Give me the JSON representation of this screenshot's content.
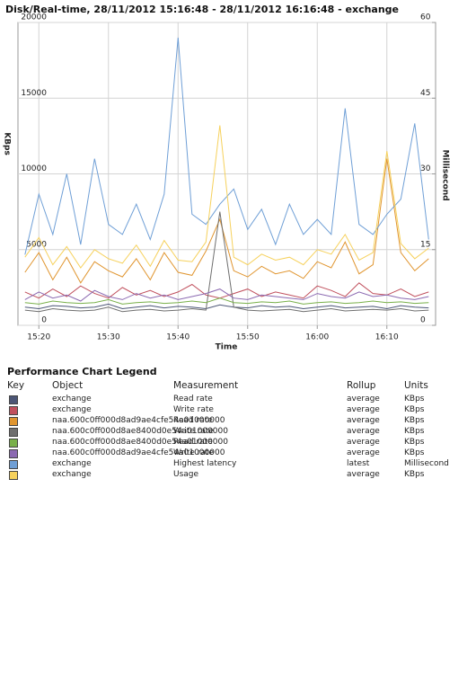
{
  "chart_data": {
    "type": "line",
    "title": "Disk/Real-time, 28/11/2012 15:16:48 - 28/11/2012 16:16:48 - exchange",
    "x_label": "Time",
    "y_label": "KBps",
    "y2_label": "Millisecond",
    "x": [
      "15:18",
      "15:20",
      "15:22",
      "15:24",
      "15:26",
      "15:28",
      "15:30",
      "15:32",
      "15:34",
      "15:36",
      "15:38",
      "15:40",
      "15:42",
      "15:44",
      "15:46",
      "15:48",
      "15:50",
      "15:52",
      "15:54",
      "15:56",
      "15:58",
      "16:00",
      "16:02",
      "16:04",
      "16:06",
      "16:08",
      "16:10",
      "16:12",
      "16:14",
      "16:16"
    ],
    "xlim": [
      "15:17",
      "16:17"
    ],
    "xticks": [
      "15:20",
      "15:30",
      "15:40",
      "15:50",
      "16:00",
      "16:10"
    ],
    "ylim": [
      0,
      20000
    ],
    "yticks": [
      0,
      5000,
      10000,
      15000,
      20000
    ],
    "y2lim": [
      0,
      60
    ],
    "y2ticks": [
      0,
      15,
      30,
      45,
      60
    ],
    "grid": true,
    "series": [
      {
        "color": "#4c5676",
        "values": [
          1200,
          1100,
          1300,
          1250,
          1150,
          1200,
          1400,
          1100,
          1200,
          1300,
          1150,
          1250,
          1200,
          1100,
          1350,
          1200,
          1150,
          1300,
          1200,
          1250,
          1100,
          1200,
          1300,
          1150,
          1200,
          1250,
          1100,
          1300,
          1200,
          1150
        ]
      },
      {
        "color": "#c0505d",
        "values": [
          2200,
          1800,
          2400,
          1900,
          2600,
          2100,
          1800,
          2500,
          2000,
          2300,
          1900,
          2200,
          2700,
          2000,
          1800,
          2100,
          2400,
          1900,
          2200,
          2000,
          1800,
          2600,
          2300,
          1900,
          2800,
          2100,
          2000,
          2400,
          1900,
          2200
        ]
      },
      {
        "color": "#e0952f",
        "values": [
          3500,
          4800,
          3000,
          4500,
          2800,
          4200,
          3600,
          3200,
          4400,
          3000,
          4800,
          3500,
          3300,
          4900,
          7000,
          3600,
          3200,
          3900,
          3400,
          3600,
          3100,
          4200,
          3800,
          5500,
          3400,
          4000,
          11000,
          4800,
          3600,
          4400
        ]
      },
      {
        "color": "#6f6f6f",
        "values": [
          1000,
          900,
          1100,
          1000,
          950,
          1000,
          1200,
          900,
          1000,
          1050,
          950,
          1000,
          1100,
          1000,
          7500,
          1200,
          1000,
          950,
          1000,
          1050,
          900,
          1000,
          1100,
          950,
          1000,
          1050,
          1000,
          1100,
          950,
          1000
        ]
      },
      {
        "color": "#79b04a",
        "values": [
          1500,
          1400,
          1600,
          1500,
          1450,
          1500,
          1700,
          1400,
          1500,
          1550,
          1450,
          1500,
          1600,
          1500,
          1800,
          1500,
          1450,
          1550,
          1500,
          1600,
          1400,
          1500,
          1550,
          1450,
          1500,
          1600,
          1500,
          1550,
          1450,
          1500
        ]
      },
      {
        "color": "#8b69b1",
        "values": [
          1700,
          2200,
          1800,
          2000,
          1600,
          2300,
          1900,
          1700,
          2100,
          1800,
          2000,
          1700,
          1900,
          2100,
          2400,
          1800,
          1700,
          2000,
          1900,
          1800,
          1700,
          2100,
          1900,
          1800,
          2200,
          1900,
          2000,
          1800,
          1700,
          1900
        ]
      },
      {
        "color": "#6f9fd6",
        "axis": "y2",
        "values": [
          14,
          26,
          18,
          30,
          16,
          33,
          20,
          18,
          24,
          17,
          26,
          57,
          22,
          20,
          24,
          27,
          19,
          23,
          16,
          24,
          18,
          21,
          18,
          43,
          20,
          18,
          22,
          25,
          40,
          17
        ]
      },
      {
        "color": "#f6d15c",
        "values": [
          4500,
          5800,
          4000,
          5200,
          3800,
          5000,
          4400,
          4100,
          5300,
          3900,
          5600,
          4300,
          4200,
          5500,
          13200,
          4500,
          4000,
          4700,
          4300,
          4500,
          4000,
          5000,
          4700,
          6000,
          4300,
          4800,
          11500,
          5400,
          4400,
          5100
        ]
      }
    ]
  },
  "legend": {
    "title": "Performance Chart Legend",
    "headers": [
      "Key",
      "Object",
      "Measurement",
      "Rollup",
      "Units"
    ],
    "rows": [
      {
        "object": "exchange",
        "measurement": "Read rate",
        "rollup": "average",
        "units": "KBps"
      },
      {
        "object": "exchange",
        "measurement": "Write rate",
        "rollup": "average",
        "units": "KBps"
      },
      {
        "object": "naa.600c0ff000d8ad9ae4cfe54a01000000",
        "measurement": "Read rate",
        "rollup": "average",
        "units": "KBps"
      },
      {
        "object": "naa.600c0ff000d8ae8400d0e54a01000000",
        "measurement": "Write rate",
        "rollup": "average",
        "units": "KBps"
      },
      {
        "object": "naa.600c0ff000d8ae8400d0e54a01000000",
        "measurement": "Read rate",
        "rollup": "average",
        "units": "KBps"
      },
      {
        "object": "naa.600c0ff000d8ad9ae4cfe54a01000000",
        "measurement": "Write rate",
        "rollup": "average",
        "units": "KBps"
      },
      {
        "object": "exchange",
        "measurement": "Highest latency",
        "rollup": "latest",
        "units": "Millisecond"
      },
      {
        "object": "exchange",
        "measurement": "Usage",
        "rollup": "average",
        "units": "KBps"
      }
    ]
  }
}
